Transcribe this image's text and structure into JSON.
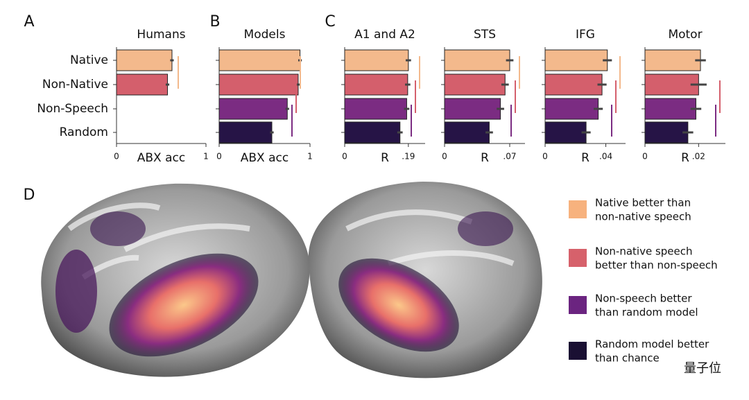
{
  "panel_labels": [
    "A",
    "B",
    "C",
    "D"
  ],
  "chart_data": [
    {
      "type": "bar",
      "title": "Humans",
      "categories": [
        "Native",
        "Non-Native",
        "Non-Speech",
        "Random"
      ],
      "values": [
        0.62,
        0.57,
        null,
        null
      ],
      "errors": [
        0.02,
        0.02,
        null,
        null
      ],
      "colors": [
        "#f3b98c",
        "#d45f6c",
        "#7b2c82",
        "#261446"
      ],
      "xlim": [
        0,
        1
      ],
      "xticks": [
        0,
        1
      ],
      "xlabel": "ABX acc"
    },
    {
      "type": "bar",
      "title": "Models",
      "values": [
        0.89,
        0.87,
        0.75,
        0.58
      ],
      "errors": [
        0.02,
        0.02,
        0.02,
        0.02
      ],
      "colors": [
        "#f3b98c",
        "#d45f6c",
        "#7b2c82",
        "#261446"
      ],
      "xlim": [
        0,
        1
      ],
      "xticks": [
        0,
        1
      ],
      "xlabel": "ABX acc"
    },
    {
      "type": "bar",
      "title": "A1 and A2",
      "values": [
        0.19,
        0.188,
        0.185,
        0.165
      ],
      "errors": [
        0.008,
        0.008,
        0.008,
        0.008
      ],
      "colors": [
        "#f3b98c",
        "#d45f6c",
        "#7b2c82",
        "#261446"
      ],
      "xlim": [
        0,
        0.24
      ],
      "xticks": [
        0,
        {
          "value": 0.19,
          "label": ".19"
        }
      ],
      "xlabel": "R"
    },
    {
      "type": "bar",
      "title": "STS",
      "values": [
        0.07,
        0.065,
        0.06,
        0.048
      ],
      "errors": [
        0.004,
        0.004,
        0.004,
        0.004
      ],
      "colors": [
        "#f3b98c",
        "#d45f6c",
        "#7b2c82",
        "#261446"
      ],
      "xlim": [
        0,
        0.0864
      ],
      "xticks": [
        0,
        {
          "value": 0.07,
          "label": ".07"
        }
      ],
      "xlabel": "R"
    },
    {
      "type": "bar",
      "title": "IFG",
      "values": [
        0.041,
        0.0375,
        0.035,
        0.027
      ],
      "errors": [
        0.003,
        0.003,
        0.003,
        0.003
      ],
      "colors": [
        "#f3b98c",
        "#d45f6c",
        "#7b2c82",
        "#261446"
      ],
      "xlim": [
        0,
        0.053
      ],
      "xticks": [
        0,
        {
          "value": 0.04,
          "label": ".04"
        }
      ],
      "xlabel": "R"
    },
    {
      "type": "bar",
      "title": "Motor",
      "values": [
        0.0207,
        0.02,
        0.019,
        0.016
      ],
      "errors": [
        0.002,
        0.003,
        0.002,
        0.002
      ],
      "colors": [
        "#f3b98c",
        "#d45f6c",
        "#7b2c82",
        "#261446"
      ],
      "xlim": [
        0,
        0.03
      ],
      "xticks": [
        0,
        {
          "value": 0.02,
          "label": ".02"
        }
      ],
      "xlabel": "R"
    }
  ],
  "legend": [
    {
      "lines": [
        "Native better than",
        "non-native speech"
      ],
      "color": "#f7b27e"
    },
    {
      "lines": [
        "Non-native speech",
        "better than non-speech"
      ],
      "color": "#d6616b"
    },
    {
      "lines": [
        "Non-speech better",
        "than random model"
      ],
      "color": "#6b2480"
    },
    {
      "lines": [
        "Random model better",
        "than chance"
      ],
      "color": "#1a1033"
    }
  ],
  "watermark": "量子位"
}
